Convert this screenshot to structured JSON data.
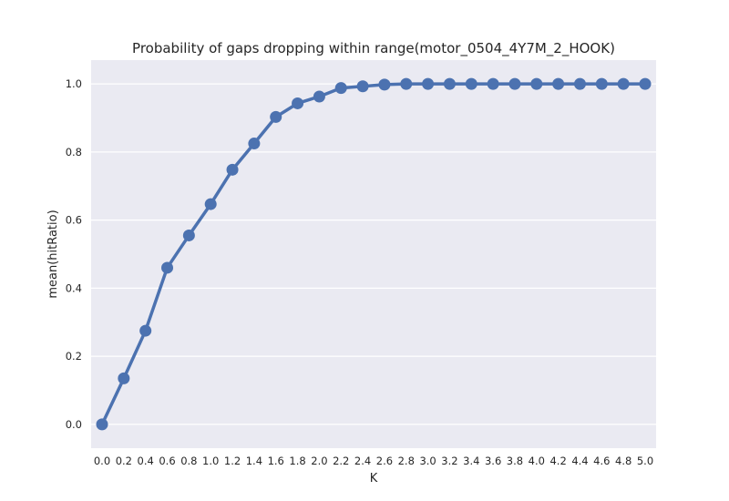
{
  "chart_data": {
    "type": "line",
    "title": "Probability of gaps dropping within range(motor_0504_4Y7M_2_HOOK)",
    "xlabel": "K",
    "ylabel": "mean(hitRatio)",
    "categories": [
      "0.0",
      "0.2",
      "0.4",
      "0.6",
      "0.8",
      "1.0",
      "1.2",
      "1.4",
      "1.6",
      "1.8",
      "2.0",
      "2.2",
      "2.4",
      "2.6",
      "2.8",
      "3.0",
      "3.2",
      "3.4",
      "3.6",
      "3.8",
      "4.0",
      "4.2",
      "4.4",
      "4.6",
      "4.8",
      "5.0"
    ],
    "values": [
      0.0,
      0.135,
      0.275,
      0.46,
      0.555,
      0.647,
      0.748,
      0.825,
      0.903,
      0.943,
      0.963,
      0.988,
      0.993,
      0.998,
      1.0,
      1.0,
      1.0,
      1.0,
      1.0,
      1.0,
      1.0,
      1.0,
      1.0,
      1.0,
      1.0,
      1.0
    ],
    "yticks": [
      "0.0",
      "0.2",
      "0.4",
      "0.6",
      "0.8",
      "1.0"
    ],
    "ytick_values": [
      0.0,
      0.2,
      0.4,
      0.6,
      0.8,
      1.0
    ],
    "ylim": [
      -0.07,
      1.07
    ],
    "grid": true,
    "legend": "none",
    "colors": {
      "line": "#4c72b0",
      "background": "#eaeaf2",
      "grid": "#ffffff",
      "text": "#262626"
    }
  }
}
